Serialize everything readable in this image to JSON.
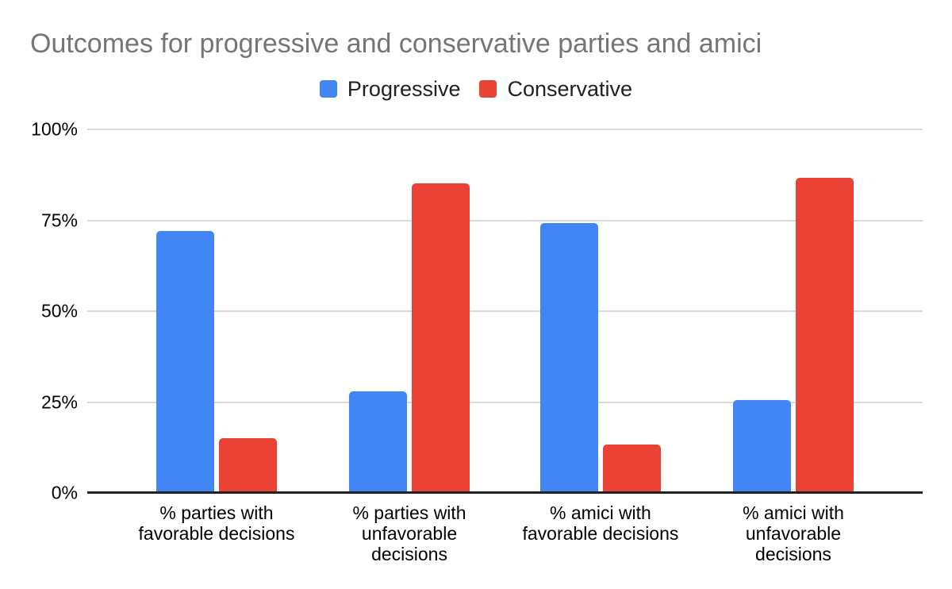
{
  "title": "Outcomes for progressive and conservative parties and amici",
  "legend": {
    "position": "top",
    "items": [
      {
        "label": "Progressive",
        "color": "#4285F4"
      },
      {
        "label": "Conservative",
        "color": "#EA4335"
      }
    ]
  },
  "chart_data": {
    "type": "bar",
    "title": "Outcomes for progressive and conservative parties and amici",
    "categories": [
      "% parties with favorable decisions",
      "% parties with unfavorable decisions",
      "% amici with favorable decisions",
      "% amici with unfavorable decisions"
    ],
    "category_label_lines": [
      "% parties with\nfavorable decisions",
      "% parties with\nunfavorable\ndecisions",
      "% amici with\nfavorable decisions",
      "% amici with\nunfavorable\ndecisions"
    ],
    "series": [
      {
        "name": "Progressive",
        "color": "#4285F4",
        "values": [
          72.0,
          28.0,
          74.2,
          25.5
        ]
      },
      {
        "name": "Conservative",
        "color": "#EA4335",
        "values": [
          15.0,
          85.2,
          13.4,
          86.7
        ]
      }
    ],
    "xlabel": "",
    "ylabel": "",
    "ylim": [
      0,
      100
    ],
    "yticks": [
      {
        "value": 0,
        "label": "0%"
      },
      {
        "value": 25,
        "label": "25%"
      },
      {
        "value": 50,
        "label": "50%"
      },
      {
        "value": 75,
        "label": "75%"
      },
      {
        "value": 100,
        "label": "100%"
      }
    ],
    "grid": true,
    "legend_position": "top",
    "colors": {
      "title_text": "#757575",
      "axis_text": "#000000",
      "gridline": "#d9d9d9",
      "axis_line": "#222222",
      "background": "#ffffff"
    }
  }
}
